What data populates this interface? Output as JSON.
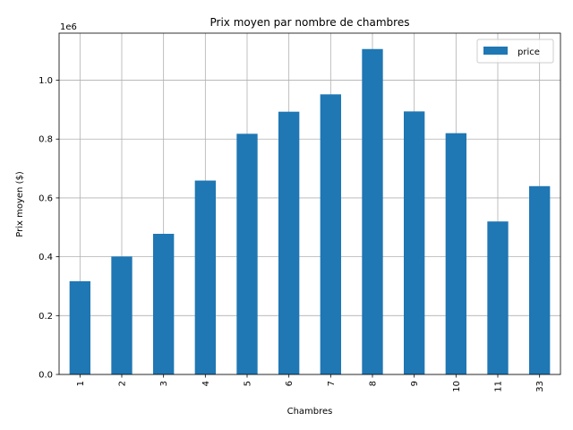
{
  "chart_data": {
    "type": "bar",
    "title": "Prix moyen par nombre de chambres",
    "xlabel": "Chambres",
    "ylabel": "Prix moyen ($)",
    "y_offset_label": "1e6",
    "categories": [
      "1",
      "2",
      "3",
      "4",
      "5",
      "6",
      "7",
      "8",
      "9",
      "10",
      "11",
      "33"
    ],
    "series": [
      {
        "name": "price",
        "color": "#1f77b4",
        "values": [
          317000,
          401000,
          478000,
          659000,
          818000,
          893000,
          952000,
          1106000,
          894000,
          820000,
          520000,
          640000
        ]
      }
    ],
    "ylim": [
      0,
      1160000
    ],
    "yticks": [
      0,
      200000,
      400000,
      600000,
      800000,
      1000000
    ],
    "ytick_labels": [
      "0.0",
      "0.2",
      "0.4",
      "0.6",
      "0.8",
      "1.0"
    ],
    "grid": true,
    "legend_position": "top-right",
    "x_tick_rotation": "vertical"
  }
}
